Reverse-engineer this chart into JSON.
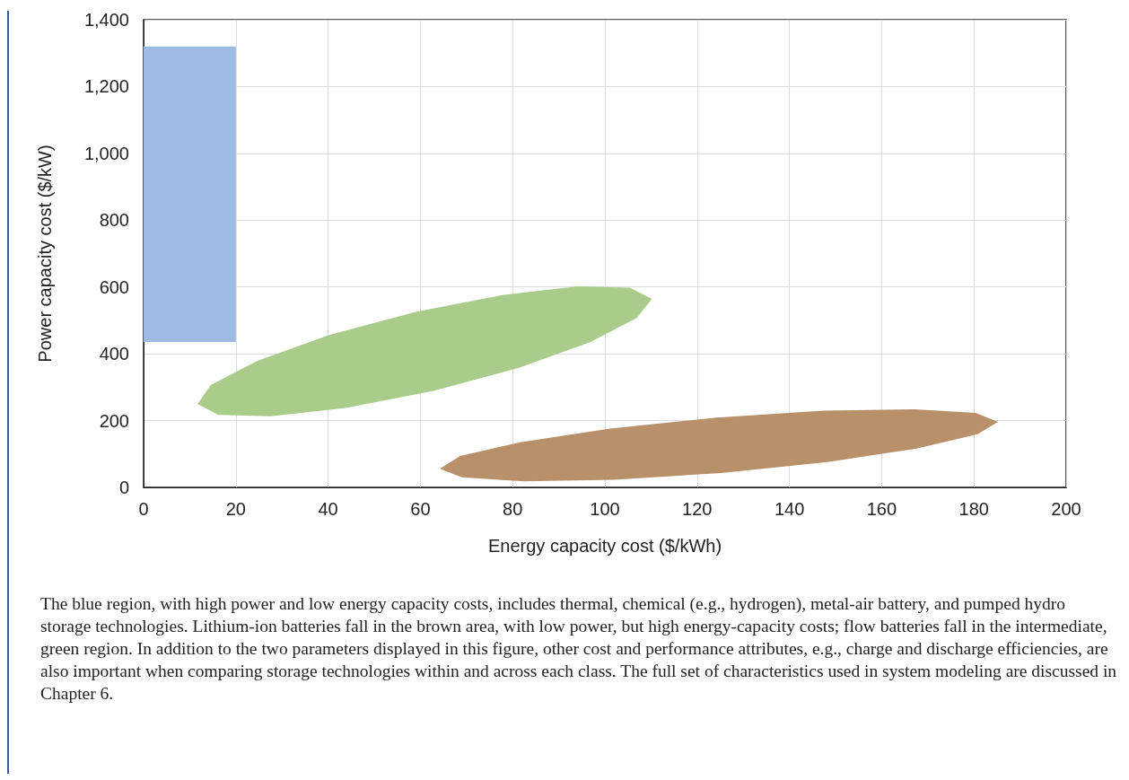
{
  "chart_data": {
    "type": "area",
    "xlabel": "Energy capacity cost ($/kWh)",
    "ylabel": "Power capacity cost ($/kW)",
    "xlim": [
      0,
      200
    ],
    "xticks": [
      0,
      20,
      40,
      60,
      80,
      100,
      120,
      140,
      160,
      180,
      200
    ],
    "ylim": [
      0,
      1400
    ],
    "yticks": [
      0,
      200,
      400,
      600,
      800,
      {
        "value": 1000,
        "label": "1,000"
      },
      {
        "value": 1200,
        "label": "1,200"
      },
      {
        "value": 1400,
        "label": "1,400"
      }
    ],
    "grid": true,
    "series": [
      {
        "color": "#9dbbe3",
        "x": [
          0,
          0,
          20,
          20
        ],
        "values": [
          435,
          1320,
          1320,
          435
        ]
      },
      {
        "color": "#a9cc8a",
        "x": [
          110.2,
          106.9,
          96.9,
          81.4,
          62.8,
          43.8,
          27.5,
          16.2,
          11.7,
          14.6,
          24.7,
          40.2,
          58.8,
          77.8,
          94.1,
          105.4
        ],
        "values": [
          564,
          507,
          435,
          358,
          289,
          238,
          213,
          217,
          250,
          307,
          379,
          456,
          525,
          576,
          602,
          598
        ]
      },
      {
        "color": "#b8916b",
        "x": [
          185.2,
          180.8,
          167.8,
          148.3,
          125.2,
          102.0,
          82.3,
          69.0,
          64.2,
          68.6,
          81.6,
          101.1,
          124.2,
          147.4,
          167.1,
          180.4
        ],
        "values": [
          196,
          159,
          117,
          76,
          43,
          23,
          18,
          30,
          56,
          94,
          135,
          176,
          209,
          230,
          234,
          223
        ]
      }
    ],
    "annotations": [
      "The blue region, with high power and low energy capacity costs, includes thermal, chemical (e.g., hydrogen), metal-air battery, and pumped hydro storage technologies. Lithium-ion batteries fall in the brown area, with low power, but high energy-capacity costs; flow batteries fall in the intermediate, green region. In addition to the two parameters displayed in this figure, other cost and performance attributes, e.g., charge and discharge efficiencies, are also important when comparing storage technologies within and across each class. The full set of characteristics used in system modeling are discussed in Chapter 6."
    ]
  }
}
